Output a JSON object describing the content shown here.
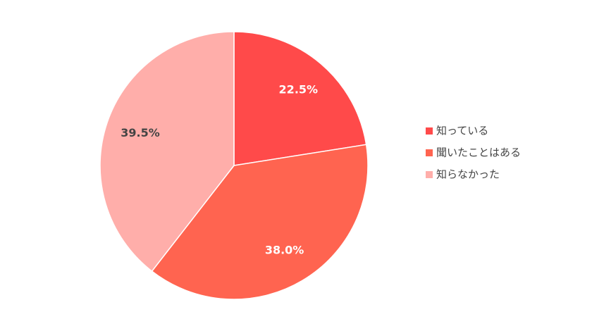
{
  "chart_data": {
    "type": "pie",
    "categories": [
      "知っている",
      "聞いたことはある",
      "知らなかった"
    ],
    "values": [
      22.5,
      38.0,
      39.5
    ],
    "value_labels": [
      "22.5%",
      "38.0%",
      "39.5%"
    ],
    "colors": [
      "#ff4a4a",
      "#ff6450",
      "#ffaeaa"
    ],
    "legend": "right"
  }
}
